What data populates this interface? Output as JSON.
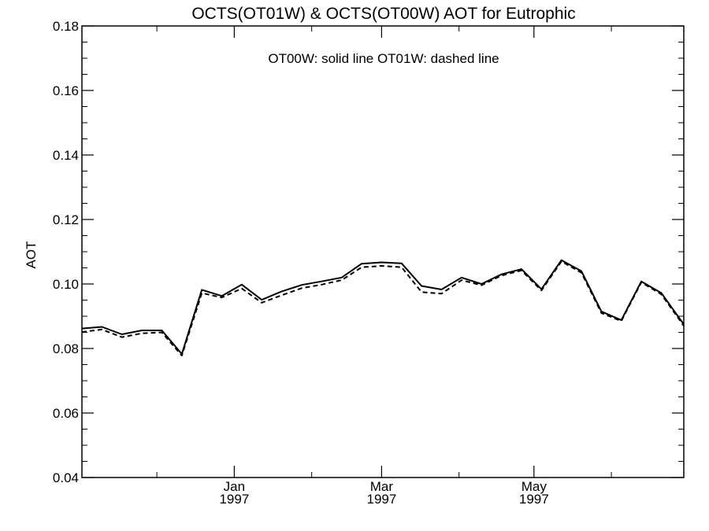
{
  "chart_data": {
    "type": "line",
    "title": "OCTS(OT01W) & OCTS(OT00W)  AOT for Eutrophic",
    "annotation": "OT00W: solid line   OT01W: dashed line",
    "ylabel": "AOT",
    "xlabel": "",
    "ylim": [
      0.04,
      0.18
    ],
    "yticks": [
      "0.04",
      "0.06",
      "0.08",
      "0.10",
      "0.12",
      "0.14",
      "0.16",
      "0.18"
    ],
    "xlim": [
      "1996-11-01",
      "1997-06-30"
    ],
    "xticks": [
      {
        "date": "1997-01-01",
        "month": "Jan",
        "year": "1997"
      },
      {
        "date": "1997-03-01",
        "month": "Mar",
        "year": "1997"
      },
      {
        "date": "1997-05-01",
        "month": "May",
        "year": "1997"
      }
    ],
    "grid": false,
    "series": [
      {
        "name": "OT00W",
        "style": "solid",
        "color": "#000000",
        "x": [
          "1996-11-01",
          "1996-11-09",
          "1996-11-17",
          "1996-11-25",
          "1996-12-03",
          "1996-12-11",
          "1996-12-19",
          "1996-12-27",
          "1997-01-04",
          "1997-01-12",
          "1997-01-20",
          "1997-01-28",
          "1997-02-05",
          "1997-02-13",
          "1997-02-21",
          "1997-03-01",
          "1997-03-09",
          "1997-03-17",
          "1997-03-25",
          "1997-04-02",
          "1997-04-10",
          "1997-04-18",
          "1997-04-26",
          "1997-05-04",
          "1997-05-12",
          "1997-05-20",
          "1997-05-28",
          "1997-06-05",
          "1997-06-13",
          "1997-06-21",
          "1997-06-30"
        ],
        "y": [
          0.0862,
          0.0867,
          0.0844,
          0.0856,
          0.0856,
          0.0783,
          0.0982,
          0.0963,
          0.0998,
          0.0951,
          0.0977,
          0.0997,
          0.1008,
          0.102,
          0.1063,
          0.1067,
          0.1064,
          0.0994,
          0.0983,
          0.102,
          0.1,
          0.103,
          0.1046,
          0.0984,
          0.1074,
          0.104,
          0.0915,
          0.0888,
          0.1008,
          0.0972,
          0.0875
        ]
      },
      {
        "name": "OT01W",
        "style": "dashed",
        "color": "#000000",
        "x": [
          "1996-11-01",
          "1996-11-09",
          "1996-11-17",
          "1996-11-25",
          "1996-12-03",
          "1996-12-11",
          "1996-12-19",
          "1996-12-27",
          "1997-01-04",
          "1997-01-12",
          "1997-01-20",
          "1997-01-28",
          "1997-02-05",
          "1997-02-13",
          "1997-02-21",
          "1997-03-01",
          "1997-03-09",
          "1997-03-17",
          "1997-03-25",
          "1997-04-02",
          "1997-04-10",
          "1997-04-18",
          "1997-04-26",
          "1997-05-04",
          "1997-05-12",
          "1997-05-20",
          "1997-05-28",
          "1997-06-05",
          "1997-06-13",
          "1997-06-21",
          "1997-06-30"
        ],
        "y": [
          0.0851,
          0.0859,
          0.0835,
          0.0847,
          0.085,
          0.0778,
          0.0972,
          0.0958,
          0.0986,
          0.0942,
          0.0965,
          0.0987,
          0.0998,
          0.1012,
          0.1052,
          0.1056,
          0.1052,
          0.0975,
          0.097,
          0.1012,
          0.0996,
          0.1026,
          0.1042,
          0.098,
          0.107,
          0.1035,
          0.091,
          0.0885,
          0.1005,
          0.0968,
          0.087
        ]
      }
    ]
  }
}
